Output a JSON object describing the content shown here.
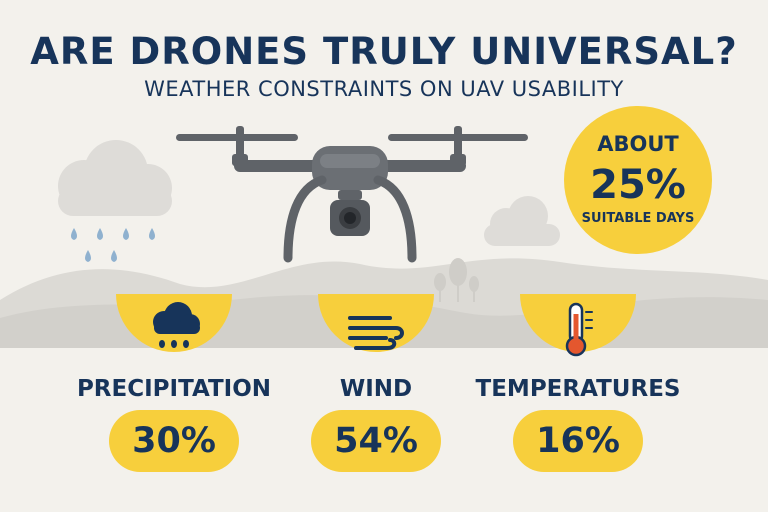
{
  "header": {
    "title": "ARE DRONES TRULY UNIVERSAL?",
    "subtitle": "WEATHER CONSTRAINTS ON UAV USABILITY"
  },
  "badge": {
    "line1": "ABOUT",
    "value": "25%",
    "line3": "SUITABLE DAYS"
  },
  "stats": [
    {
      "label": "PRECIPITATION",
      "value": "30%",
      "icon": "rain-cloud-icon"
    },
    {
      "label": "WIND",
      "value": "54%",
      "icon": "wind-icon"
    },
    {
      "label": "TEMPERATURES",
      "value": "16%",
      "icon": "thermometer-icon"
    }
  ],
  "colors": {
    "background": "#f3f1ec",
    "accent": "#f7cf3c",
    "text": "#17345a",
    "hills": "#d2d0cb",
    "drone": "#5f6368",
    "rain": "#8fb1cf",
    "thermometer": "#e4572e"
  }
}
